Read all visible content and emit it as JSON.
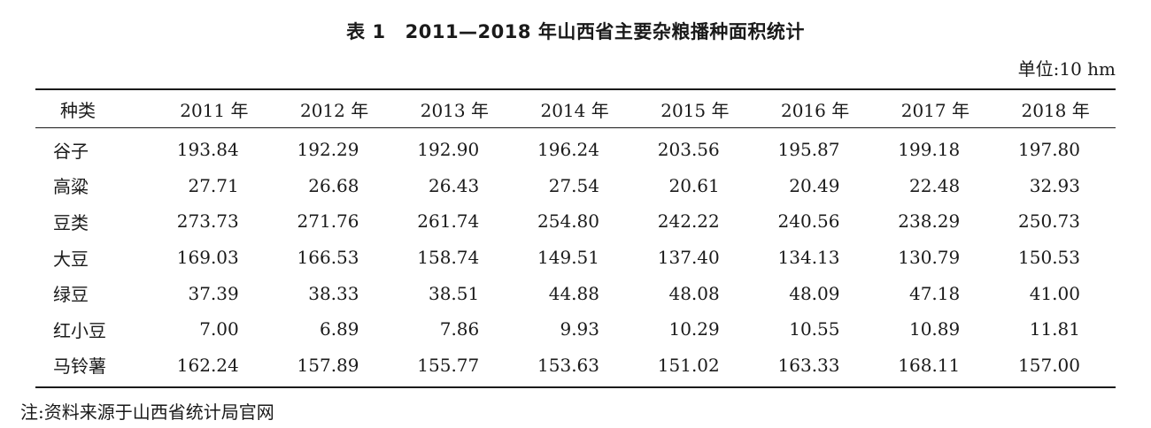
{
  "caption": {
    "number": "表 1",
    "title": "2011—2018 年山西省主要杂粮播种面积统计"
  },
  "unit": "单位:10 hm",
  "table": {
    "header": [
      "种类",
      "2011 年",
      "2012 年",
      "2013 年",
      "2014 年",
      "2015 年",
      "2016 年",
      "2017 年",
      "2018 年"
    ],
    "rows": [
      {
        "name": "谷子",
        "values": [
          "193.84",
          "192.29",
          "192.90",
          "196.24",
          "203.56",
          "195.87",
          "199.18",
          "197.80"
        ]
      },
      {
        "name": "高粱",
        "values": [
          "27.71",
          "26.68",
          "26.43",
          "27.54",
          "20.61",
          "20.49",
          "22.48",
          "32.93"
        ]
      },
      {
        "name": "豆类",
        "values": [
          "273.73",
          "271.76",
          "261.74",
          "254.80",
          "242.22",
          "240.56",
          "238.29",
          "250.73"
        ]
      },
      {
        "name": "大豆",
        "values": [
          "169.03",
          "166.53",
          "158.74",
          "149.51",
          "137.40",
          "134.13",
          "130.79",
          "150.53"
        ]
      },
      {
        "name": "绿豆",
        "values": [
          "37.39",
          "38.33",
          "38.51",
          "44.88",
          "48.08",
          "48.09",
          "47.18",
          "41.00"
        ]
      },
      {
        "name": "红小豆",
        "values": [
          "7.00",
          "6.89",
          "7.86",
          "9.93",
          "10.29",
          "10.55",
          "10.89",
          "11.81"
        ]
      },
      {
        "name": "马铃薯",
        "values": [
          "162.24",
          "157.89",
          "155.77",
          "153.63",
          "151.02",
          "163.33",
          "168.11",
          "157.00"
        ]
      }
    ]
  },
  "note": "注:资料来源于山西省统计局官网"
}
